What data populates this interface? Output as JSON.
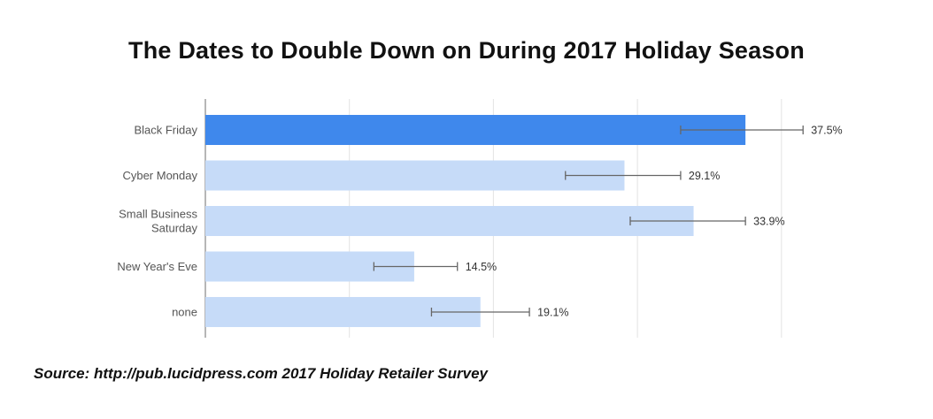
{
  "title": "The Dates to Double Down on During 2017 Holiday Season",
  "source": "Source: http://pub.lucidpress.com  2017 Holiday Retailer Survey",
  "colors": {
    "highlight": "#3f88ec",
    "bar": "#c6dbf8",
    "gridline": "#e3e3e3",
    "axis": "#9e9e9e",
    "errorbar": "#666666"
  },
  "chart_data": {
    "type": "bar",
    "orientation": "horizontal",
    "categories": [
      [
        "Black Friday"
      ],
      [
        "Cyber Monday"
      ],
      [
        "Small Business",
        "Saturday"
      ],
      [
        "New Year's Eve"
      ],
      [
        "none"
      ]
    ],
    "values": [
      37.5,
      29.1,
      33.9,
      14.5,
      19.1
    ],
    "value_labels": [
      "37.5%",
      "29.1%",
      "33.9%",
      "14.5%",
      "19.1%"
    ],
    "error_low": [
      33.0,
      25.0,
      29.5,
      11.7,
      15.7
    ],
    "error_high": [
      41.5,
      33.0,
      37.5,
      17.5,
      22.5
    ],
    "highlight_index": 0,
    "xlim": [
      0,
      50
    ],
    "gridlines": [
      0,
      10,
      20,
      30,
      40
    ],
    "grid": true,
    "legend": "none"
  }
}
